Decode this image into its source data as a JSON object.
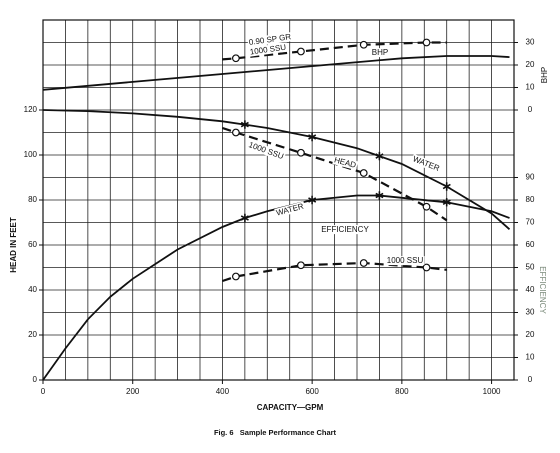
{
  "chart_data": {
    "type": "line",
    "caption": "Fig. 6   Sample Performance Chart",
    "xlabel": "CAPACITY—GPM",
    "ylabel": "HEAD IN FEET",
    "y2label": "EFFICIENCY",
    "y3label": "BHP",
    "xlim": [
      0,
      1050
    ],
    "xticks": [
      0,
      200,
      400,
      600,
      800,
      1000
    ],
    "ylim": [
      0,
      160
    ],
    "yticks": [
      0,
      20,
      40,
      60,
      80,
      100,
      120
    ],
    "y2lim": [
      0,
      160
    ],
    "y2ticks": [
      0,
      10,
      20,
      30,
      40,
      50,
      60,
      70,
      80,
      90
    ],
    "y3lim": [
      -120,
      40
    ],
    "y3ticks": [
      0,
      10,
      20,
      30
    ],
    "grid": true,
    "grid_step": {
      "x": 50,
      "y": 10
    },
    "color": "#111111",
    "annotations": [
      "0.90 SP GR",
      "1000 SSU",
      "BHP",
      "1000 SSU",
      "HEAD",
      "WATER",
      "WATER",
      "EFFICIENCY",
      "1000 SSU"
    ],
    "series": [
      {
        "axis": "y",
        "line": "solid",
        "marker": "none",
        "x": [
          0,
          100,
          200,
          300,
          400,
          450,
          500,
          600,
          700,
          750,
          800,
          900,
          1000,
          1040
        ],
        "values": [
          120,
          119.5,
          118.5,
          117,
          115,
          113.5,
          112,
          108,
          103,
          99.5,
          96,
          86,
          74,
          67
        ]
      },
      {
        "axis": "y",
        "line": "none",
        "marker": "star",
        "x": [
          450,
          600,
          750,
          900
        ],
        "values": [
          113.5,
          108,
          99.5,
          86
        ]
      },
      {
        "axis": "y",
        "line": "dashed",
        "marker": "none",
        "x": [
          400,
          430,
          575,
          715,
          855,
          900
        ],
        "values": [
          112,
          110,
          101,
          92,
          77,
          71
        ]
      },
      {
        "axis": "y",
        "line": "none",
        "marker": "circle",
        "x": [
          430,
          575,
          715,
          855
        ],
        "values": [
          110,
          101,
          92,
          77
        ]
      },
      {
        "axis": "y2",
        "line": "solid",
        "marker": "none",
        "x": [
          0,
          50,
          100,
          150,
          200,
          300,
          400,
          450,
          500,
          600,
          700,
          750,
          800,
          900,
          1000,
          1040
        ],
        "values": [
          0,
          14,
          27,
          37,
          45,
          58,
          68,
          72,
          75,
          80,
          82,
          82,
          81,
          79,
          75,
          72
        ]
      },
      {
        "axis": "y2",
        "line": "none",
        "marker": "star",
        "x": [
          450,
          600,
          750,
          900
        ],
        "values": [
          72,
          80,
          82,
          79
        ]
      },
      {
        "axis": "y2",
        "line": "dashed",
        "marker": "none",
        "x": [
          400,
          430,
          575,
          715,
          855,
          900
        ],
        "values": [
          44,
          46,
          51,
          52,
          50,
          49
        ]
      },
      {
        "axis": "y2",
        "line": "none",
        "marker": "circle",
        "x": [
          430,
          575,
          715,
          855
        ],
        "values": [
          46,
          51,
          52,
          50
        ]
      },
      {
        "axis": "y3",
        "line": "solid",
        "marker": "none",
        "x": [
          0,
          200,
          400,
          600,
          800,
          900,
          1000,
          1040
        ],
        "values": [
          9,
          12.5,
          16,
          19.5,
          23,
          24,
          24,
          23.5
        ]
      },
      {
        "axis": "y3",
        "line": "dashed",
        "marker": "none",
        "x": [
          400,
          430,
          575,
          715,
          855,
          900
        ],
        "values": [
          22.5,
          23,
          26,
          29,
          30,
          30
        ]
      },
      {
        "axis": "y3",
        "line": "none",
        "marker": "circle",
        "x": [
          430,
          575,
          715,
          855
        ],
        "values": [
          23,
          26,
          29,
          30
        ]
      }
    ]
  }
}
